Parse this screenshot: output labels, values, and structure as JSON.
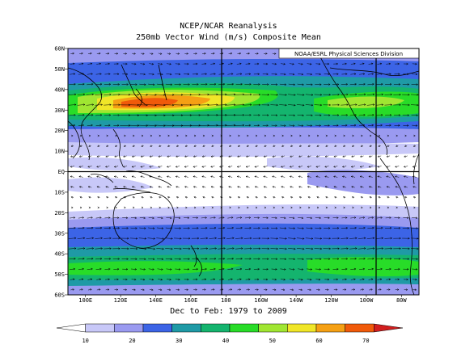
{
  "title": "NCEP/NCAR Reanalysis",
  "subtitle": "250mb Vector Wind (m/s) Composite Mean",
  "credit": "NOAA/ESRL Physical Sciences Division",
  "date_range": "Dec to Feb: 1979 to 2009",
  "lat_labels": [
    "60N",
    "50N",
    "40N",
    "30N",
    "20N",
    "10N",
    "EQ",
    "10S",
    "20S",
    "30S",
    "40S",
    "50S",
    "60S"
  ],
  "lon_labels": [
    "100E",
    "120E",
    "140E",
    "160E",
    "180",
    "160W",
    "140W",
    "120W",
    "100W",
    "80W"
  ],
  "colorbar": {
    "ticks": [
      "10",
      "20",
      "30",
      "40",
      "50",
      "60",
      "70"
    ],
    "colors": [
      "#ffffff",
      "#c8c8f8",
      "#9a9af0",
      "#3c64e6",
      "#1f9aa6",
      "#14b46e",
      "#28dc28",
      "#a0e632",
      "#f0e628",
      "#f5a014",
      "#f05a0a",
      "#d21e1e"
    ]
  },
  "map": {
    "lat_range": [
      -60,
      60
    ],
    "lon_range": [
      90,
      290
    ],
    "grid_lon_lines": [
      180,
      265
    ],
    "equator": 0
  }
}
